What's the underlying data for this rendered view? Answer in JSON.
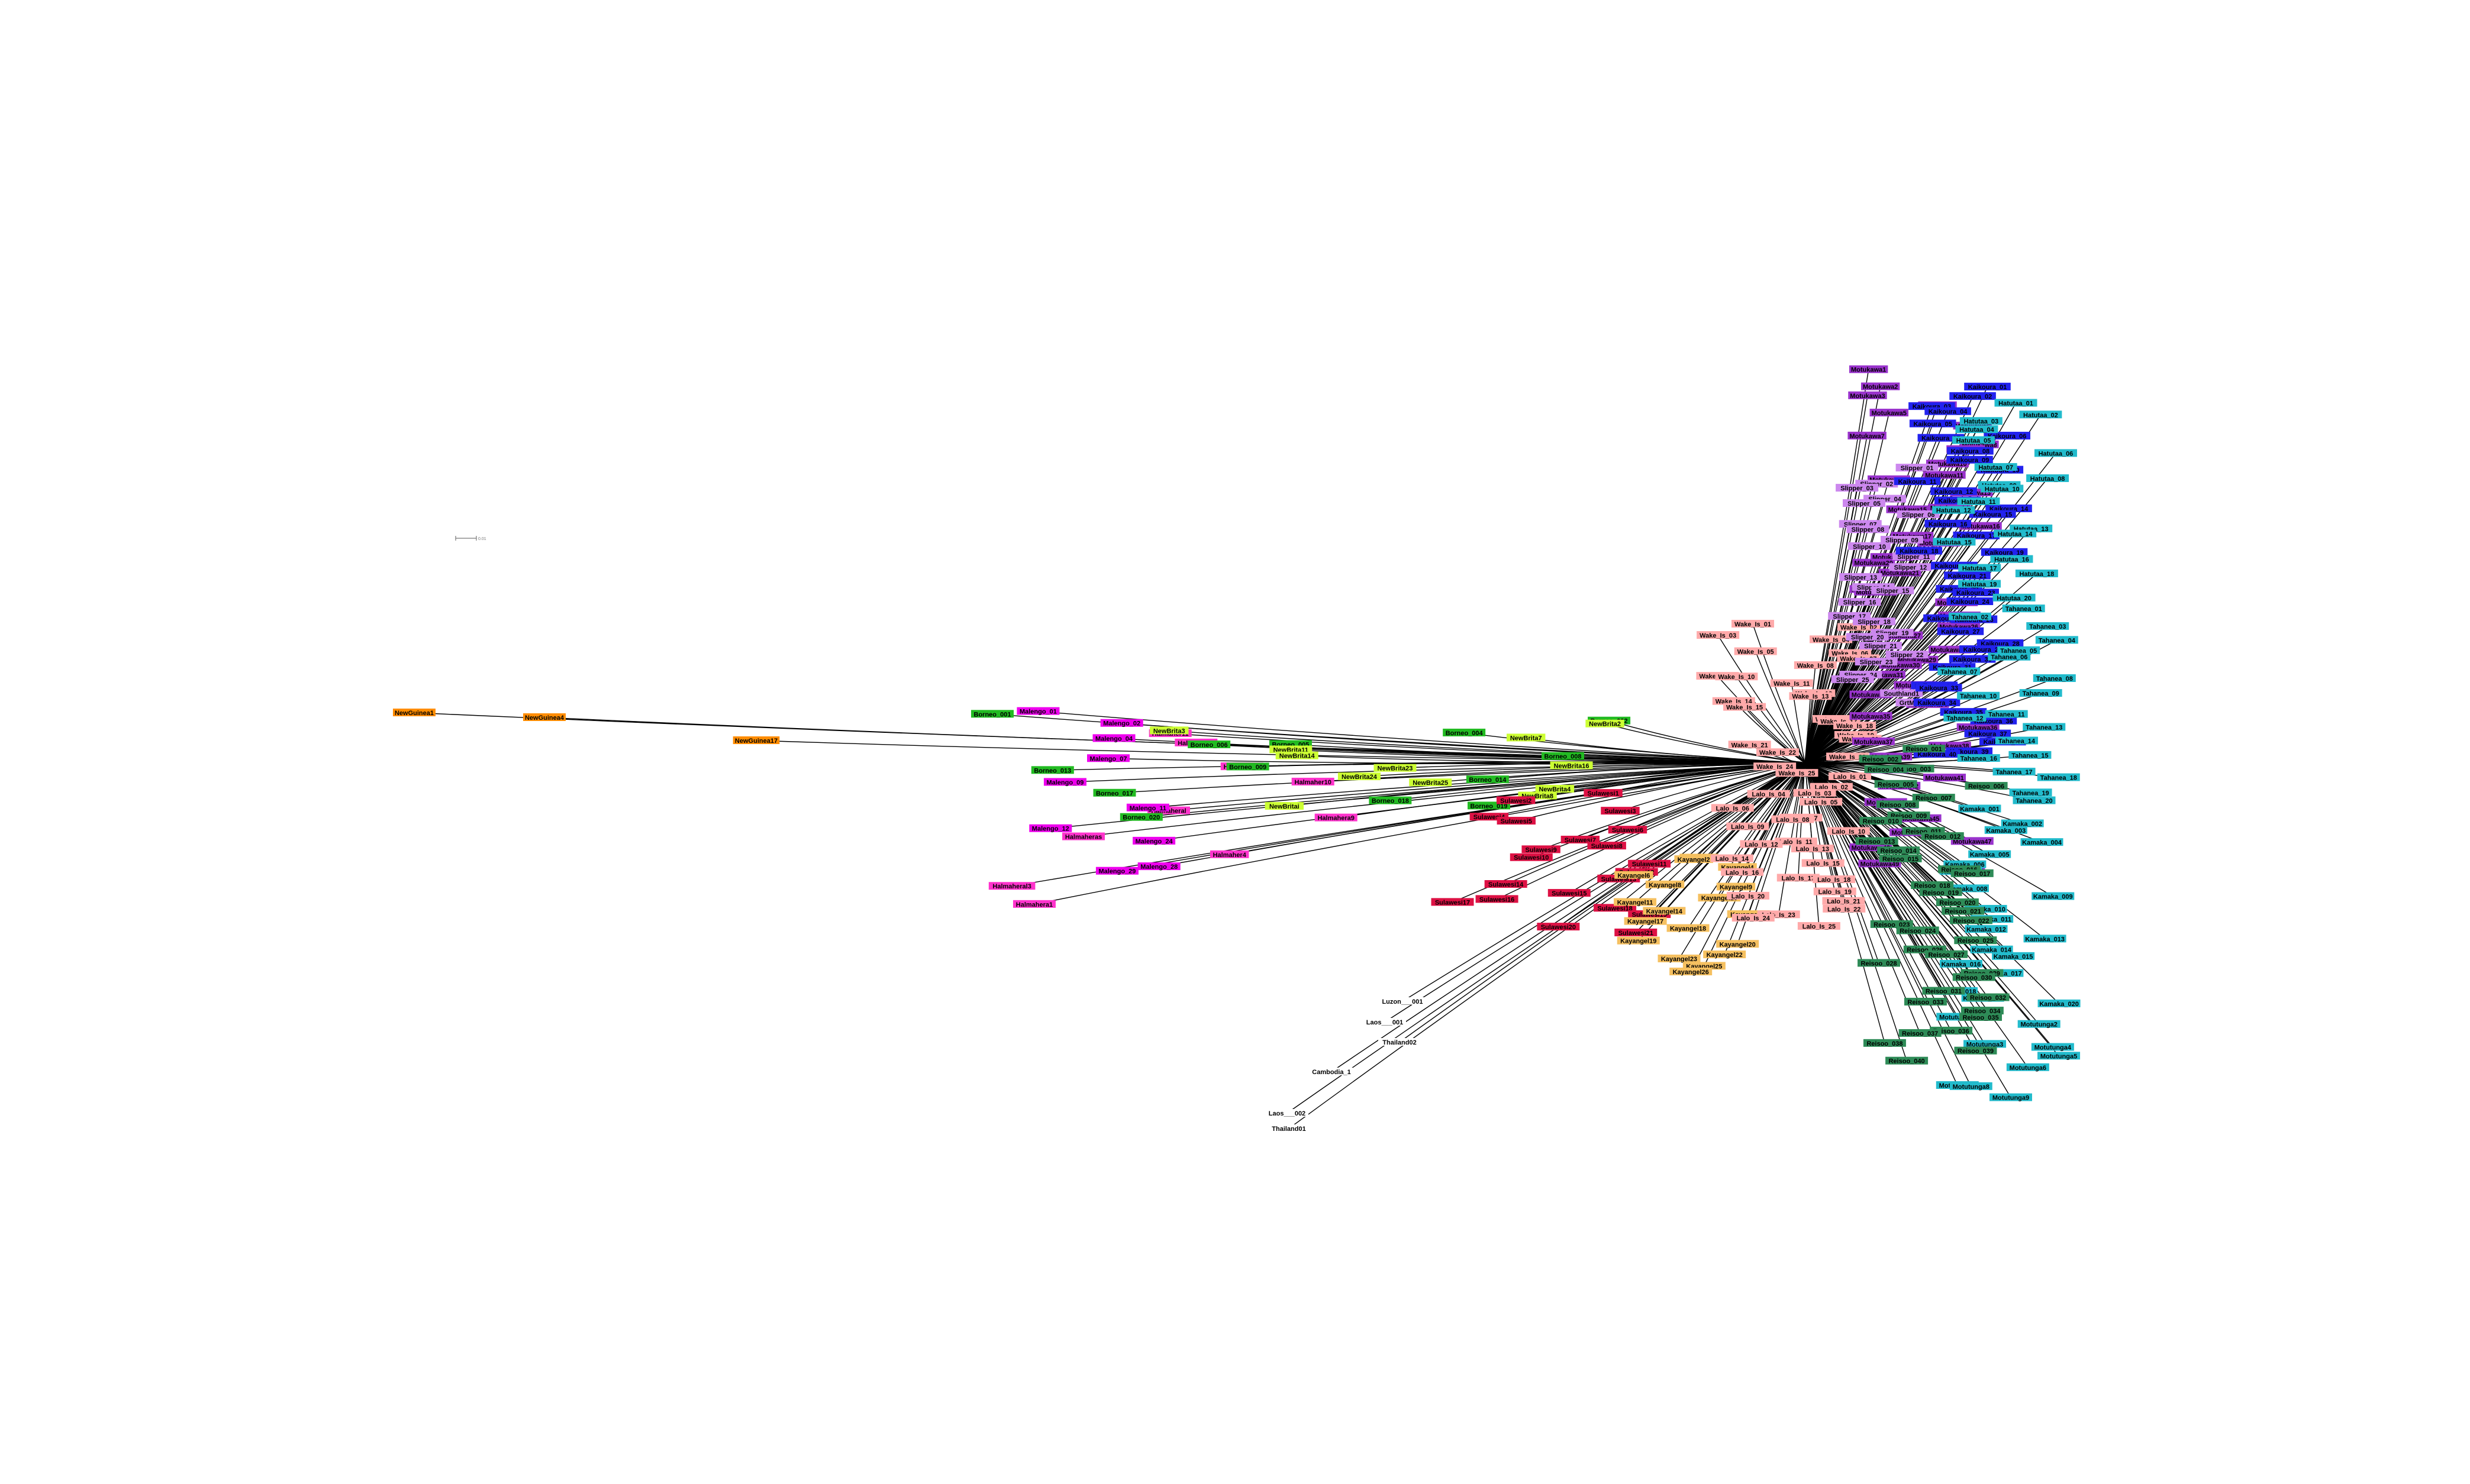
{
  "scale_bar": {
    "label": "0.01"
  },
  "groups": {
    "orange": {
      "color": "#ff8c00",
      "tips": [
        "NewGuinea1",
        "NewGuinea4",
        "NewGuinea17"
      ]
    },
    "magenta": {
      "color": "#ff33cc",
      "tips": [
        "Halmaher11",
        "Halmaher19",
        "Halmahera7",
        "Halmaher10",
        "Halmaheral",
        "Halmahera9",
        "Halmaheras",
        "Halmaher4",
        "Halmaheral3",
        "Halmahera1"
      ]
    },
    "violet": {
      "color": "#ee00ee",
      "tips": [
        "Malengo_01",
        "Malengo_02",
        "Malengo_04",
        "Malengo_07",
        "Malengo_09",
        "Malengo_11",
        "Malengo_12",
        "Malengo_24",
        "Malengo_28",
        "Malengo_29"
      ]
    },
    "green": {
      "color": "#22bb22",
      "tips": [
        "Borneo_001",
        "Borneo_002",
        "Borneo_004",
        "Borneo_005",
        "Borneo_006",
        "Borneo_008",
        "Borneo_009",
        "Borneo_013",
        "Borneo_014",
        "Borneo_017",
        "Borneo_018",
        "Borneo_019",
        "Borneo_020"
      ]
    },
    "lime": {
      "color": "#ccff33",
      "tips": [
        "NewBrita2",
        "NewBrita3",
        "NewBrita7",
        "NewBrita11",
        "NewBrita14",
        "NewBrita16",
        "NewBrita23",
        "NewBrita24",
        "NewBrita25",
        "NewBrita4",
        "NewBrita8",
        "NewBritai"
      ]
    },
    "crimson": {
      "color": "#dd1144",
      "tips": [
        "Sulawesi1",
        "Sulawesi2",
        "Sulawesi3",
        "Sulawesi4",
        "Sulawesi5",
        "Sulawesi6",
        "Sulawesi7",
        "Sulawesi8",
        "Sulawesi9",
        "Sulawesi10",
        "Sulawesi11",
        "Sulawesi12",
        "Sulawesi13",
        "Sulawesi14",
        "Sulawesi15",
        "Sulawesi16",
        "Sulawesi17",
        "Sulawesi18",
        "Sulawesi19",
        "Sulawesi20",
        "Sulawesi21"
      ]
    },
    "tan": {
      "color": "#f5c060",
      "tips": [
        "Kayangel1",
        "Kayangel2",
        "Kayangel4",
        "Kayangel6",
        "Kayangel8",
        "Kayangel9",
        "Kayangel10",
        "Kayangel11",
        "Kayangel14",
        "Kayangel16",
        "Kayangel17",
        "Kayangel18",
        "Kayangel19",
        "Kayangel20",
        "Kayangel22",
        "Kayangel23",
        "Kayangel25",
        "Kayangel26"
      ]
    },
    "white": {
      "color": "#ffffff",
      "tips": [
        "Luzon___001",
        "Laos___001",
        "Thailand02",
        "Cambodia_1",
        "Laos___002",
        "Thailand01"
      ]
    },
    "pink": {
      "color": "#ffaaaa",
      "tips": [
        "Wake_Is_01",
        "Wake_Is_02",
        "Wake_Is_03",
        "Wake_Is_04",
        "Wake_Is_05",
        "Wake_Is_06",
        "Wake_Is_07",
        "Wake_Is_08",
        "Wake_Is_09",
        "Wake_Is_10",
        "Wake_Is_11",
        "Wake_Is_12",
        "Wake_Is_13",
        "Wake_Is_14",
        "Wake_Is_15",
        "Wake_Is_16",
        "Wake_Is_17",
        "Wake_Is_18",
        "Wake_Is_19",
        "Wake_Is_20",
        "Wake_Is_21",
        "Wake_Is_22",
        "Wake_Is_23",
        "Wake_Is_24",
        "Wake_Is_25",
        "Lalo_Is_01",
        "Lalo_Is_02",
        "Lalo_Is_03",
        "Lalo_Is_04",
        "Lalo_Is_05",
        "Lalo_Is_06",
        "Lalo_Is_07",
        "Lalo_Is_08",
        "Lalo_Is_09",
        "Lalo_Is_10",
        "Lalo_Is_11",
        "Lalo_Is_12",
        "Lalo_Is_13",
        "Lalo_Is_14",
        "Lalo_Is_15",
        "Lalo_Is_16",
        "Lalo_Is_17",
        "Lalo_Is_18",
        "Lalo_Is_19",
        "Lalo_Is_20",
        "Lalo_Is_21",
        "Lalo_Is_22",
        "Lalo_Is_23",
        "Lalo_Is_24",
        "Lalo_Is_25"
      ]
    },
    "purple": {
      "color": "#9933cc",
      "tips": [
        "Motukawa1",
        "Motukawa2",
        "Motukawa3",
        "Motukawa4",
        "Motukawa5",
        "Motukawa6",
        "Motukawa7",
        "Motukawa8",
        "Motukawa9",
        "Motukawa10",
        "Motukawa11",
        "Motukawa12",
        "Motukawa13",
        "Motukawa14",
        "Motukawa15",
        "Motukawa16",
        "Motukawa17",
        "Motukawa18",
        "Motukawa19",
        "Motukawa20",
        "Motukawa21",
        "Motukawa22",
        "Motukawa23",
        "Motukawa24",
        "Motukawa25",
        "Motukawa26",
        "Motukawa27",
        "Motukawa28",
        "Motukawa29",
        "Motukawa30",
        "Motukawa31",
        "Motukawa32",
        "Motukawa33",
        "Motukawa34",
        "Motukawa35",
        "Motukawa36",
        "Motukawa37",
        "Motukawa38",
        "Motukawa39",
        "Motukawa40",
        "Motukawa41",
        "Motukawa42",
        "Motukawa43",
        "Motukawa44",
        "Motukawa45",
        "Motukawa46",
        "Motukawa47",
        "Motukawa48",
        "Motukawa49",
        "Motukawa50"
      ]
    },
    "lavender": {
      "color": "#cc88ee",
      "tips": [
        "Slipper_01",
        "Slipper_02",
        "Slipper_03",
        "Slipper_04",
        "Slipper_05",
        "Slipper_06",
        "Slipper_07",
        "Slipper_08",
        "Slipper_09",
        "Slipper_10",
        "Slipper_11",
        "Slipper_12",
        "Slipper_13",
        "Slipper_14",
        "Slipper_15",
        "Slipper_16",
        "Slipper_17",
        "Slipper_18",
        "Slipper_19",
        "Slipper_20",
        "Slipper_21",
        "Slipper_22",
        "Slipper_23",
        "Slipper_24",
        "Slipper_25",
        "Southland1",
        "GrtMercury"
      ]
    },
    "blue": {
      "color": "#2222ee",
      "tips": [
        "Kaikoura_01",
        "Kaikoura_02",
        "Kaikoura_03",
        "Kaikoura_04",
        "Kaikoura_05",
        "Kaikoura_06",
        "Kaikoura_07",
        "Kaikoura_08",
        "Kaikoura_09",
        "Kaikoura_10",
        "Kaikoura_11",
        "Kaikoura_12",
        "Kaikoura_13",
        "Kaikoura_14",
        "Kaikoura_15",
        "Kaikoura_16",
        "Kaikoura_17",
        "Kaikoura_18",
        "Kaikoura_19",
        "Kaikoura_20",
        "Kaikoura_21",
        "Kaikoura_22",
        "Kaikoura_23",
        "Kaikoura_24",
        "Kaikoura_25",
        "Kaikoura_26",
        "Kaikoura_27",
        "Kaikoura_28",
        "Kaikoura_29",
        "Kaikoura_30",
        "Kaikoura_31",
        "Kaikoura_32",
        "Kaikoura_33",
        "Kaikoura_34",
        "Kaikoura_35",
        "Kaikoura_36",
        "Kaikoura_37",
        "Kaikoura_38",
        "Kaikoura_39",
        "Kaikoura_40"
      ]
    },
    "cyan": {
      "color": "#22bbcc",
      "tips": [
        "Hatutaa_01",
        "Hatutaa_02",
        "Hatutaa_03",
        "Hatutaa_04",
        "Hatutaa_05",
        "Hatutaa_06",
        "Hatutaa_07",
        "Hatutaa_08",
        "Hatutaa_09",
        "Hatutaa_10",
        "Hatutaa_11",
        "Hatutaa_12",
        "Hatutaa_13",
        "Hatutaa_14",
        "Hatutaa_15",
        "Hatutaa_16",
        "Hatutaa_17",
        "Hatutaa_18",
        "Hatutaa_19",
        "Hatutaa_20",
        "Tahanea_01",
        "Tahanea_02",
        "Tahanea_03",
        "Tahanea_04",
        "Tahanea_05",
        "Tahanea_06",
        "Tahanea_07",
        "Tahanea_08",
        "Tahanea_09",
        "Tahanea_10",
        "Tahanea_11",
        "Tahanea_12",
        "Tahanea_13",
        "Tahanea_14",
        "Tahanea_15",
        "Tahanea_16",
        "Tahanea_17",
        "Tahanea_18",
        "Tahanea_19",
        "Tahanea_20",
        "Kamaka_001",
        "Kamaka_002",
        "Kamaka_003",
        "Kamaka_004",
        "Kamaka_005",
        "Kamaka_006",
        "Kamaka_007",
        "Kamaka_008",
        "Kamaka_009",
        "Kamaka_010",
        "Kamaka_011",
        "Kamaka_012",
        "Kamaka_013",
        "Kamaka_014",
        "Kamaka_015",
        "Kamaka_016",
        "Kamaka_017",
        "Kamaka_018",
        "Kamaka_019",
        "Kamaka_020",
        "Motutunga1",
        "Motutunga2",
        "Motutunga3",
        "Motutunga4",
        "Motutunga5",
        "Motutunga6",
        "Motutunga7",
        "Motutunga8",
        "Motutunga9"
      ]
    },
    "darkgreen": {
      "color": "#2e8b57",
      "tips": [
        "Reisoo_001",
        "Reisoo_002",
        "Reisoo_003",
        "Reisoo_004",
        "Reisoo_005",
        "Reisoo_006",
        "Reisoo_007",
        "Reisoo_008",
        "Reisoo_009",
        "Reisoo_010",
        "Reisoo_011",
        "Reisoo_012",
        "Reisoo_013",
        "Reisoo_014",
        "Reisoo_015",
        "Reisoo_016",
        "Reisoo_017",
        "Reisoo_018",
        "Reisoo_019",
        "Reisoo_020",
        "Reisoo_021",
        "Reisoo_022",
        "Reisoo_023",
        "Reisoo_024",
        "Reisoo_025",
        "Reisoo_026",
        "Reisoo_027",
        "Reisoo_028",
        "Reisoo_029",
        "Reisoo_030",
        "Reisoo_031",
        "Reisoo_032",
        "Reisoo_033",
        "Reisoo_034",
        "Reisoo_035",
        "Reisoo_036",
        "Reisoo_037",
        "Reisoo_038",
        "Reisoo_039",
        "Reisoo_040"
      ]
    }
  }
}
